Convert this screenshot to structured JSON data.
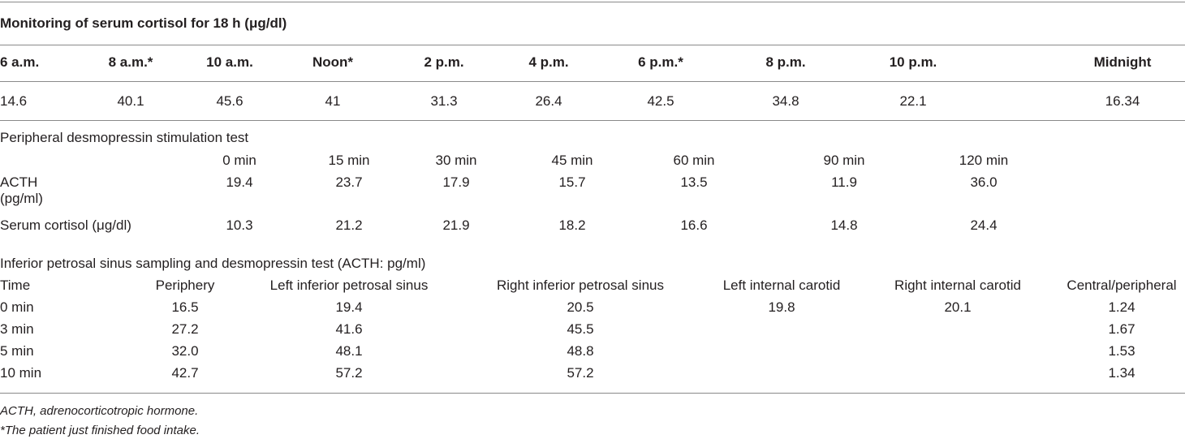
{
  "title": "Monitoring of serum cortisol for 18 h (μg/dl)",
  "section1": {
    "headers": [
      "6 a.m.",
      "8 a.m.*",
      "10 a.m.",
      "Noon*",
      "2 p.m.",
      "4 p.m.",
      "6 p.m.*",
      "8 p.m.",
      "10 p.m.",
      "Midnight"
    ],
    "values": [
      "14.6",
      "40.1",
      "45.6",
      "41",
      "31.3",
      "26.4",
      "42.5",
      "34.8",
      "22.1",
      "16.34"
    ]
  },
  "section2": {
    "title": "Peripheral desmopressin stimulation test",
    "headers": [
      "0 min",
      "15 min",
      "30 min",
      "45 min",
      "60 min",
      "90 min",
      "120 min"
    ],
    "rows": [
      {
        "label": "ACTH (pg/ml)",
        "values": [
          "19.4",
          "23.7",
          "17.9",
          "15.7",
          "13.5",
          "11.9",
          "36.0"
        ]
      },
      {
        "label": "Serum cortisol (μg/dl)",
        "values": [
          "10.3",
          "21.2",
          "21.9",
          "18.2",
          "16.6",
          "14.8",
          "24.4"
        ]
      }
    ]
  },
  "section3": {
    "title": "Inferior petrosal sinus sampling and desmopressin test (ACTH: pg/ml)",
    "headers": [
      "Time",
      "Periphery",
      "Left inferior petrosal sinus",
      "Right inferior petrosal sinus",
      "Left internal carotid",
      "Right internal carotid",
      "Central/peripheral"
    ],
    "rows": [
      [
        "0 min",
        "16.5",
        "19.4",
        "20.5",
        "19.8",
        "20.1",
        "1.24"
      ],
      [
        "3 min",
        "27.2",
        "41.6",
        "45.5",
        null,
        null,
        "1.67"
      ],
      [
        "5 min",
        "32.0",
        "48.1",
        "48.8",
        null,
        null,
        "1.53"
      ],
      [
        "10 min",
        "42.7",
        "57.2",
        "57.2",
        null,
        null,
        "1.34"
      ]
    ]
  },
  "footnotes": [
    "ACTH, adrenocorticotropic hormone.",
    "*The patient just finished food intake."
  ]
}
